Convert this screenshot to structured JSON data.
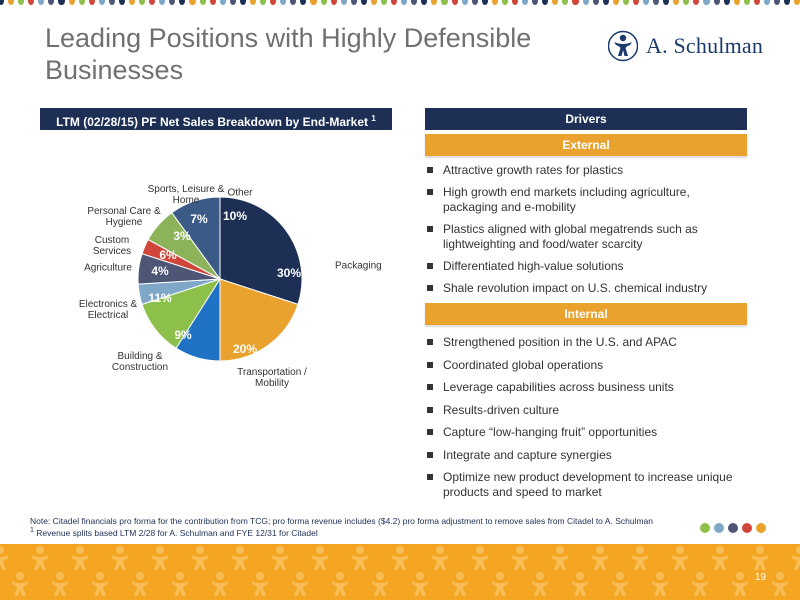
{
  "slide": {
    "title": "Leading Positions with Highly Defensible Businesses",
    "page_number": "19"
  },
  "logo": {
    "text": "A. Schulman",
    "icon": "person-figure-icon",
    "color": "#1b3a6b"
  },
  "left_panel": {
    "header": "LTM (02/28/15) PF Net Sales Breakdown by End-Market",
    "header_footnote_ref": "1"
  },
  "chart_data": {
    "type": "pie",
    "slices": [
      {
        "label": "Packaging",
        "value": 30,
        "pct_label": "30%",
        "color": "#1d2f55"
      },
      {
        "label": "Transportation / Mobility",
        "value": 20,
        "pct_label": "20%",
        "color": "#e9a22d"
      },
      {
        "label": "Building & Construction",
        "value": 9,
        "pct_label": "9%",
        "color": "#1f72c4"
      },
      {
        "label": "Electronics & Electrical",
        "value": 11,
        "pct_label": "11%",
        "color": "#8dc04b"
      },
      {
        "label": "Agriculture",
        "value": 4,
        "pct_label": "4%",
        "color": "#7fa7c8"
      },
      {
        "label": "Custom Services",
        "value": 6,
        "pct_label": "6%",
        "color": "#4e5676"
      },
      {
        "label": "Personal Care & Hygiene",
        "value": 3,
        "pct_label": "3%",
        "color": "#d0463a"
      },
      {
        "label": "Sports, Leisure & Home",
        "value": 7,
        "pct_label": "7%",
        "color": "#8db35a"
      },
      {
        "label": "Other",
        "value": 10,
        "pct_label": "10%",
        "color": "#3b5a86"
      }
    ],
    "start_angle_deg": 0,
    "direction": "clockwise"
  },
  "right_panel": {
    "header": "Drivers",
    "external": {
      "header": "External",
      "items": [
        "Attractive growth rates for plastics",
        "High growth end markets including agriculture, packaging and e-mobility",
        "Plastics aligned with global megatrends such as lightweighting and food/water scarcity",
        "Differentiated high-value solutions",
        "Shale revolution impact on U.S. chemical industry"
      ]
    },
    "internal": {
      "header": "Internal",
      "items": [
        "Strengthened position in the U.S. and APAC",
        "Coordinated global operations",
        "Leverage capabilities across business units",
        "Results-driven culture",
        "Capture “low-hanging fruit” opportunities",
        "Integrate and capture synergies",
        "Optimize new product development to increase unique products and speed to market"
      ]
    }
  },
  "notes": {
    "note": "Note: Citadel financials pro forma for the contribution from TCG; pro forma revenue includes ($4.2) pro forma adjustment to remove sales from Citadel to A. Schulman",
    "footnote_marker": "1",
    "footnote": "Revenue splits based LTM 2/28 for A. Schulman and FYE 12/31 for Citadel"
  },
  "colors": {
    "navy": "#1d2f55",
    "orange": "#e9a22d",
    "footer_orange": "#f4a623",
    "title_gray": "#707070"
  }
}
